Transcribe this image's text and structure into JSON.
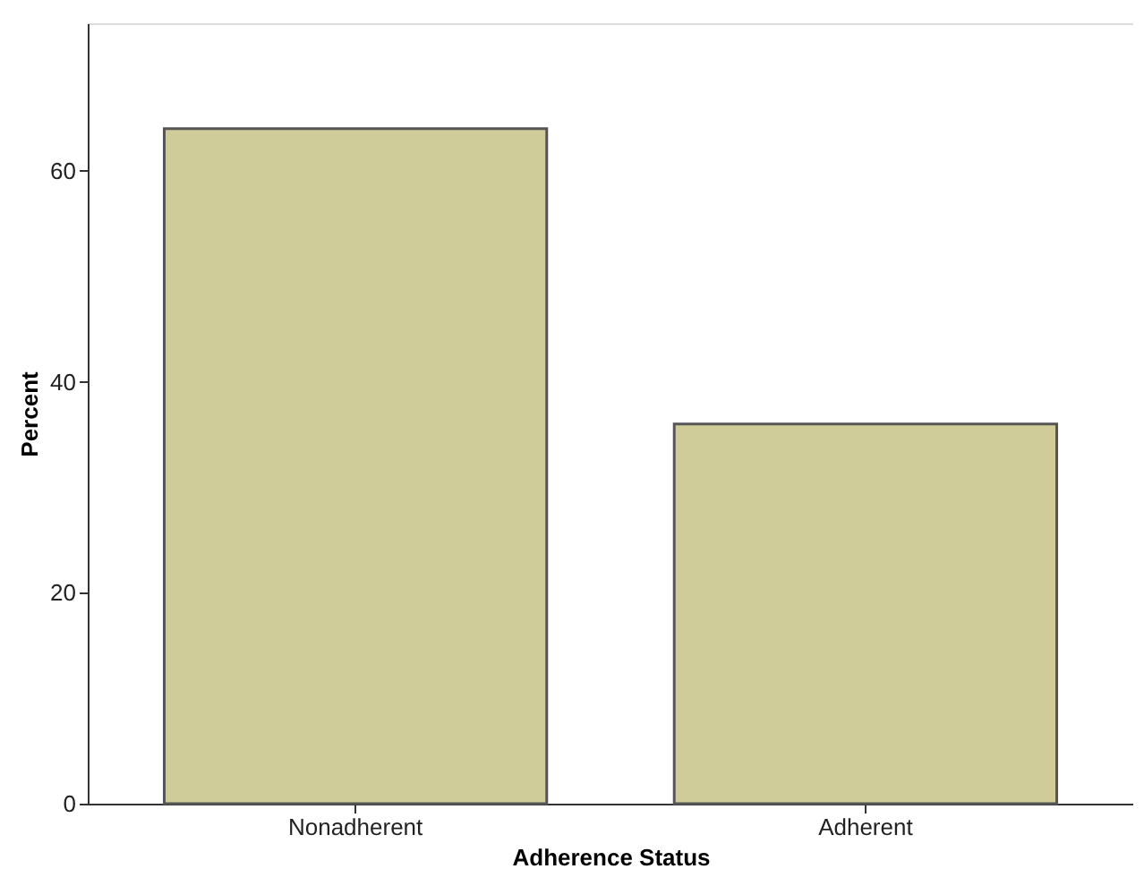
{
  "chart_data": {
    "type": "bar",
    "xlabel": "Adherence Status",
    "ylabel": "Percent",
    "categories": [
      "Nonadherent",
      "Adherent"
    ],
    "values": [
      64,
      36
    ],
    "color": "#cfcc99",
    "ylim": [
      0,
      74
    ],
    "yticks": [
      0,
      20,
      40,
      60
    ],
    "grid": false
  }
}
